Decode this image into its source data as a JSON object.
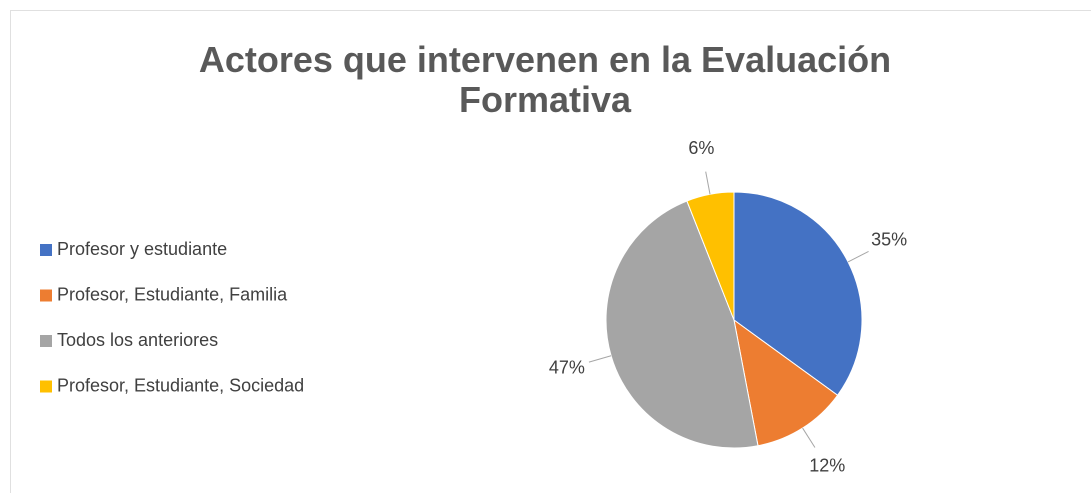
{
  "chart_data": {
    "type": "pie",
    "title": "Actores que intervenen en la Evaluación Formativa",
    "categories": [
      "Profesor y estudiante",
      "Profesor, Estudiante, Familia",
      "Todos los anteriores",
      "Profesor, Estudiante, Sociedad"
    ],
    "values": [
      35,
      12,
      47,
      6
    ],
    "value_labels": [
      "35%",
      "12%",
      "47%",
      "6%"
    ],
    "colors": [
      "#4472c4",
      "#ed7d31",
      "#a5a5a5",
      "#ffc000"
    ],
    "legend": "left"
  }
}
